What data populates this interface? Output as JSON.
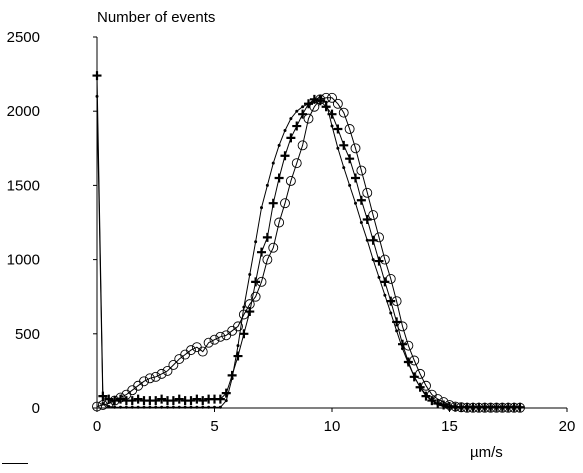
{
  "chart_data": {
    "type": "line",
    "ylabel": "Number of events",
    "xlabel": "µm/s",
    "xlim": [
      0,
      20
    ],
    "ylim": [
      0,
      2500
    ],
    "x_ticks": [
      "0",
      "5",
      "10",
      "15",
      "20"
    ],
    "y_ticks": [
      "0",
      "500",
      "1000",
      "1500",
      "2000",
      "2500"
    ],
    "grid": false,
    "legend": "none",
    "series": [
      {
        "marker": "circle",
        "x": [
          0,
          0.25,
          0.5,
          0.75,
          1,
          1.25,
          1.5,
          1.75,
          2,
          2.25,
          2.5,
          2.75,
          3,
          3.25,
          3.5,
          3.75,
          4,
          4.25,
          4.5,
          4.75,
          5,
          5.25,
          5.5,
          5.75,
          6,
          6.25,
          6.5,
          6.75,
          7,
          7.25,
          7.5,
          7.75,
          8,
          8.25,
          8.5,
          8.75,
          9,
          9.25,
          9.5,
          9.75,
          10,
          10.25,
          10.5,
          10.75,
          11,
          11.25,
          11.5,
          11.75,
          12,
          12.25,
          12.5,
          12.75,
          13,
          13.25,
          13.5,
          13.75,
          14,
          14.25,
          14.5,
          14.75,
          15,
          15.25,
          15.5,
          15.75,
          16,
          16.25,
          16.5,
          16.75,
          17,
          17.25,
          17.5,
          17.75,
          18
        ],
        "y": [
          10,
          20,
          30,
          50,
          70,
          90,
          120,
          150,
          180,
          200,
          210,
          230,
          250,
          290,
          330,
          360,
          390,
          410,
          380,
          440,
          460,
          480,
          490,
          520,
          550,
          630,
          700,
          750,
          850,
          1000,
          1080,
          1250,
          1380,
          1530,
          1650,
          1770,
          1950,
          2030,
          2080,
          2090,
          2090,
          2050,
          1990,
          1880,
          1750,
          1600,
          1450,
          1300,
          1150,
          1000,
          870,
          720,
          550,
          420,
          320,
          230,
          150,
          90,
          60,
          40,
          20,
          10,
          5,
          2,
          2,
          2,
          2,
          2,
          2,
          2,
          2,
          2,
          2
        ]
      },
      {
        "marker": "plus",
        "x": [
          0,
          0.25,
          0.5,
          0.75,
          1,
          1.25,
          1.5,
          1.75,
          2,
          2.25,
          2.5,
          2.75,
          3,
          3.25,
          3.5,
          3.75,
          4,
          4.25,
          4.5,
          4.75,
          5,
          5.25,
          5.5,
          5.75,
          6,
          6.25,
          6.5,
          6.75,
          7,
          7.25,
          7.5,
          7.75,
          8,
          8.25,
          8.5,
          8.75,
          9,
          9.25,
          9.5,
          9.75,
          10,
          10.25,
          10.5,
          10.75,
          11,
          11.25,
          11.5,
          11.75,
          12,
          12.25,
          12.5,
          12.75,
          13,
          13.25,
          13.5,
          13.75,
          14,
          14.25,
          14.5,
          14.75,
          15,
          15.25,
          15.5,
          15.75,
          16,
          16.25,
          16.5,
          16.75,
          17,
          17.25,
          17.5,
          17.75,
          18
        ],
        "y": [
          2240,
          80,
          60,
          50,
          60,
          50,
          50,
          60,
          50,
          50,
          50,
          60,
          50,
          50,
          60,
          50,
          50,
          60,
          50,
          60,
          60,
          60,
          100,
          220,
          350,
          500,
          650,
          850,
          1050,
          1150,
          1380,
          1550,
          1700,
          1820,
          1900,
          1980,
          2050,
          2080,
          2070,
          2030,
          1980,
          1880,
          1770,
          1680,
          1550,
          1400,
          1270,
          1130,
          990,
          850,
          720,
          580,
          430,
          310,
          210,
          140,
          80,
          50,
          30,
          20,
          10,
          5,
          5,
          5,
          5,
          5,
          5,
          5,
          5,
          5,
          5,
          5,
          5
        ]
      },
      {
        "marker": "dot",
        "x": [
          0,
          0.25,
          0.5,
          0.75,
          1,
          1.25,
          1.5,
          1.75,
          2,
          2.25,
          2.5,
          2.75,
          3,
          3.25,
          3.5,
          3.75,
          4,
          4.25,
          4.5,
          4.75,
          5,
          5.25,
          5.5,
          5.75,
          6,
          6.25,
          6.5,
          6.75,
          7,
          7.25,
          7.5,
          7.75,
          8,
          8.25,
          8.5,
          8.75,
          9,
          9.25,
          9.5,
          9.75,
          10,
          10.25,
          10.5,
          10.75,
          11,
          11.25,
          11.5,
          11.75,
          12,
          12.25,
          12.5,
          12.75,
          13,
          13.25,
          13.5,
          13.75,
          14,
          14.25,
          14.5,
          14.75,
          15,
          15.25,
          15.5,
          15.75,
          16,
          16.25,
          16.5,
          16.75,
          17,
          17.25,
          17.5,
          17.75,
          18
        ],
        "y": [
          2100,
          30,
          10,
          5,
          5,
          5,
          5,
          5,
          5,
          5,
          5,
          5,
          5,
          5,
          5,
          5,
          5,
          5,
          5,
          5,
          5,
          5,
          50,
          200,
          420,
          680,
          900,
          1120,
          1350,
          1500,
          1650,
          1770,
          1870,
          1950,
          2000,
          2030,
          2050,
          2070,
          2100,
          2060,
          1900,
          1750,
          1620,
          1500,
          1380,
          1250,
          1130,
          1000,
          880,
          760,
          640,
          520,
          400,
          300,
          210,
          140,
          90,
          50,
          25,
          12,
          5,
          2,
          2,
          2,
          2,
          2,
          2,
          2,
          2,
          2,
          2,
          2,
          2
        ]
      }
    ]
  }
}
